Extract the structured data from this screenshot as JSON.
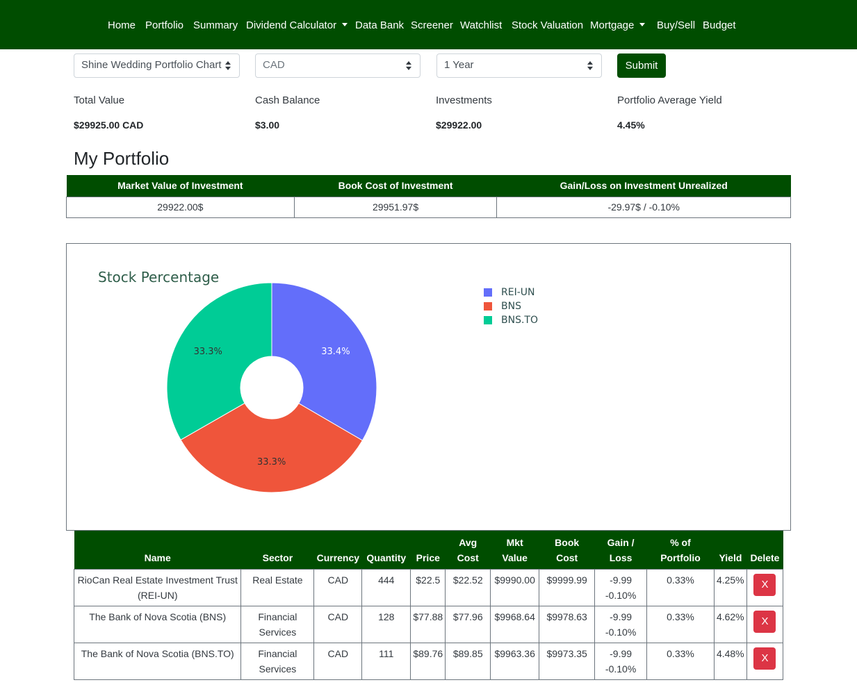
{
  "nav": {
    "items": [
      {
        "label": "Home"
      },
      {
        "label": "Portfolio"
      },
      {
        "label": "Summary"
      },
      {
        "label": "Dividend Calculator",
        "dropdown": true
      },
      {
        "label": "Data Bank"
      },
      {
        "label": "Screener"
      },
      {
        "label": "Watchlist"
      },
      {
        "label": "Stock Valuation"
      },
      {
        "label": "Mortgage",
        "dropdown": true
      },
      {
        "label": "Buy/Sell"
      },
      {
        "label": "Budget"
      }
    ]
  },
  "controls": {
    "portfolio_select": "Shine Wedding Portfolio Chart",
    "currency_select": "CAD",
    "period_select": "1 Year",
    "submit_label": "Submit"
  },
  "stats": [
    {
      "label": "Total Value",
      "value": "$29925.00 CAD"
    },
    {
      "label": "Cash Balance",
      "value": "$3.00"
    },
    {
      "label": "Investments",
      "value": "$29922.00"
    },
    {
      "label": "Portfolio Average Yield",
      "value": "4.45%"
    }
  ],
  "portfolio_title": "My Portfolio",
  "summary_table": {
    "headers": [
      "Market Value of Investment",
      "Book Cost of Investment",
      "Gain/Loss on Investment Unrealized"
    ],
    "values": [
      "29922.00$",
      "29951.97$",
      "-29.97$ / -0.10%"
    ]
  },
  "chart_data": {
    "type": "pie",
    "title": "Stock Percentage",
    "hole": true,
    "labels": [
      "REI-UN",
      "BNS",
      "BNS.TO"
    ],
    "values": [
      33.4,
      33.3,
      33.3
    ],
    "text_labels": [
      "33.4%",
      "33.3%",
      "33.3%"
    ],
    "colors": [
      "#636efa",
      "#ef553b",
      "#00cc96"
    ],
    "legend_position": "right"
  },
  "holdings": {
    "headers": [
      [
        "Name"
      ],
      [
        "Sector"
      ],
      [
        "Currency"
      ],
      [
        "Quantity"
      ],
      [
        "Price"
      ],
      [
        "Avg",
        "Cost"
      ],
      [
        "Mkt",
        "Value"
      ],
      [
        "Book",
        "Cost"
      ],
      [
        "Gain /",
        "Loss"
      ],
      [
        "% of",
        "Portfolio"
      ],
      [
        "Yield"
      ],
      [
        "Delete"
      ]
    ],
    "rows": [
      {
        "name": [
          "RioCan Real Estate Investment Trust",
          "(REI-UN)"
        ],
        "sector": [
          "Real Estate"
        ],
        "currency": "CAD",
        "quantity": "444",
        "price": "$22.5",
        "avg_cost": "$22.52",
        "mkt_value": "$9990.00",
        "book_cost": "$9999.99",
        "gain": "-9.99",
        "gain_pct": "-0.10%",
        "pct_portfolio": "0.33%",
        "yield": "4.25%",
        "delete_label": "X"
      },
      {
        "name": [
          "The Bank of Nova Scotia (BNS)"
        ],
        "sector": [
          "Financial",
          "Services"
        ],
        "currency": "CAD",
        "quantity": "128",
        "price": "$77.88",
        "avg_cost": "$77.96",
        "mkt_value": "$9968.64",
        "book_cost": "$9978.63",
        "gain": "-9.99",
        "gain_pct": "-0.10%",
        "pct_portfolio": "0.33%",
        "yield": "4.62%",
        "delete_label": "X"
      },
      {
        "name": [
          "The Bank of Nova Scotia (BNS.TO)"
        ],
        "sector": [
          "Financial",
          "Services"
        ],
        "currency": "CAD",
        "quantity": "111",
        "price": "$89.76",
        "avg_cost": "$89.85",
        "mkt_value": "$9963.36",
        "book_cost": "$9973.35",
        "gain": "-9.99",
        "gain_pct": "-0.10%",
        "pct_portfolio": "0.33%",
        "yield": "4.48%",
        "delete_label": "X"
      }
    ]
  },
  "colors": {
    "brand_green": "#004d00",
    "negative": "#dc3545",
    "delete": "#dc3545"
  }
}
